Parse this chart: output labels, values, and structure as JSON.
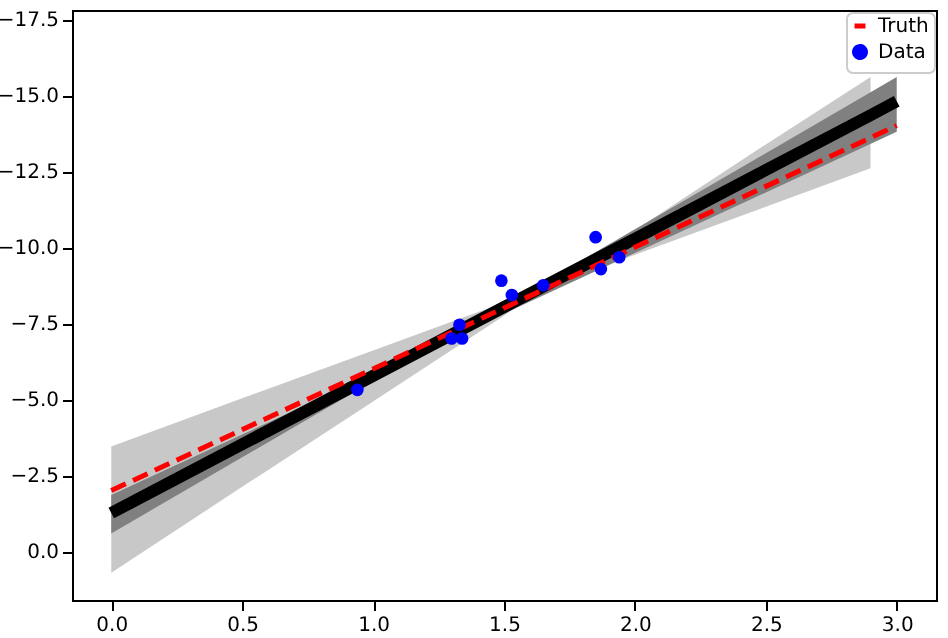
{
  "chart_data": {
    "type": "line",
    "xlim": [
      -0.15,
      3.15
    ],
    "ylim": [
      1.6,
      -17.8
    ],
    "xticks": [
      {
        "value": 0,
        "label": "0.0"
      },
      {
        "value": 0.5,
        "label": "0.5"
      },
      {
        "value": 1,
        "label": "1.0"
      },
      {
        "value": 1.5,
        "label": "1.5"
      },
      {
        "value": 2,
        "label": "2.0"
      },
      {
        "value": 2.5,
        "label": "2.5"
      },
      {
        "value": 3,
        "label": "3.0"
      }
    ],
    "yticks": [
      {
        "value": 0,
        "label": "0.0"
      },
      {
        "value": -2.5,
        "label": "−2.5"
      },
      {
        "value": -5,
        "label": "−5.0"
      },
      {
        "value": -7.5,
        "label": "−7.5"
      },
      {
        "value": -10,
        "label": "−10.0"
      },
      {
        "value": -12.5,
        "label": "−12.5"
      },
      {
        "value": -15,
        "label": "−15.0"
      },
      {
        "value": -17.5,
        "label": "−17.5"
      }
    ],
    "legend": "top right",
    "grid": false,
    "series": [
      {
        "color": "#000000",
        "x": [
          0,
          0.5,
          1,
          1.5,
          2,
          2.5,
          2.9,
          3
        ],
        "values": [
          -1.26,
          -3.52,
          -5.77,
          -8.03,
          -10.28,
          -12.54,
          -14.34,
          -14.8
        ],
        "lower": [
          -3.45,
          -5.03,
          -6.6,
          -8.18,
          -9.75,
          -11.33,
          -12.6,
          null
        ],
        "upper": [
          0.7,
          -2.12,
          -4.93,
          -7.75,
          -10.56,
          -13.38,
          -15.6,
          null
        ]
      },
      {
        "type": "line",
        "color": "#808080",
        "x": [
          0,
          0.5,
          1,
          1.5,
          2,
          2.5,
          3
        ],
        "values": [
          null,
          null,
          null,
          null,
          null,
          null,
          null
        ],
        "lower": [
          -1.85,
          -3.84,
          -5.83,
          -7.82,
          -9.81,
          -11.8,
          -13.8
        ],
        "upper": [
          -0.59,
          -3.09,
          -5.59,
          -8.09,
          -10.59,
          -13.09,
          -15.6
        ]
      },
      {
        "type": "line",
        "name": "Truth",
        "color": "#ff0000",
        "line_style": "dashed",
        "x": [
          0,
          3
        ],
        "values": [
          -2,
          -14
        ]
      },
      {
        "type": "scatter",
        "name": "Data",
        "color": "#0000ff",
        "marker": "circle",
        "x": [
          0.94,
          1.3,
          1.33,
          1.34,
          1.49,
          1.53,
          1.65,
          1.85,
          1.87,
          1.94
        ],
        "values": [
          -5.31,
          -7.0,
          -7.45,
          -7.0,
          -8.9,
          -8.43,
          -8.75,
          -10.33,
          -9.28,
          -9.67
        ]
      }
    ]
  }
}
